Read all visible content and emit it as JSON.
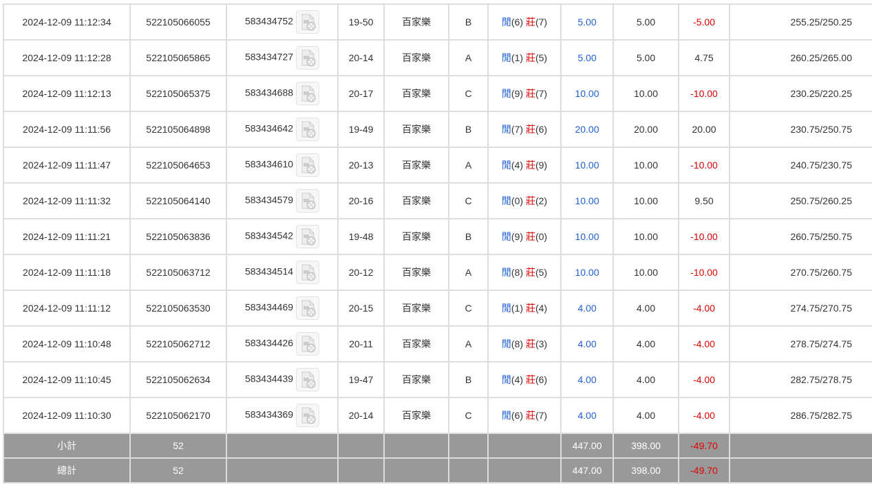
{
  "colors": {
    "player": "#1f5fd1",
    "banker": "#e00000",
    "summary_bg": "#999999"
  },
  "video_icon": "video-replay-icon",
  "rows": [
    {
      "time": "2024-12-09 11:12:34",
      "bet_id": "522105066055",
      "round_id": "583434752",
      "table": "19-50",
      "game": "百家樂",
      "seat": "B",
      "player_label": "閒",
      "player": "(6)",
      "banker_label": "莊",
      "banker": "(7)",
      "bet": "5.00",
      "valid": "5.00",
      "win": "-5.00",
      "balance": "255.25/250.25"
    },
    {
      "time": "2024-12-09 11:12:28",
      "bet_id": "522105065865",
      "round_id": "583434727",
      "table": "20-14",
      "game": "百家樂",
      "seat": "A",
      "player_label": "閒",
      "player": "(1)",
      "banker_label": "莊",
      "banker": "(5)",
      "bet": "5.00",
      "valid": "5.00",
      "win": "4.75",
      "balance": "260.25/265.00"
    },
    {
      "time": "2024-12-09 11:12:13",
      "bet_id": "522105065375",
      "round_id": "583434688",
      "table": "20-17",
      "game": "百家樂",
      "seat": "C",
      "player_label": "閒",
      "player": "(9)",
      "banker_label": "莊",
      "banker": "(7)",
      "bet": "10.00",
      "valid": "10.00",
      "win": "-10.00",
      "balance": "230.25/220.25"
    },
    {
      "time": "2024-12-09 11:11:56",
      "bet_id": "522105064898",
      "round_id": "583434642",
      "table": "19-49",
      "game": "百家樂",
      "seat": "B",
      "player_label": "閒",
      "player": "(7)",
      "banker_label": "莊",
      "banker": "(6)",
      "bet": "20.00",
      "valid": "20.00",
      "win": "20.00",
      "balance": "230.75/250.75"
    },
    {
      "time": "2024-12-09 11:11:47",
      "bet_id": "522105064653",
      "round_id": "583434610",
      "table": "20-13",
      "game": "百家樂",
      "seat": "A",
      "player_label": "閒",
      "player": "(4)",
      "banker_label": "莊",
      "banker": "(9)",
      "bet": "10.00",
      "valid": "10.00",
      "win": "-10.00",
      "balance": "240.75/230.75"
    },
    {
      "time": "2024-12-09 11:11:32",
      "bet_id": "522105064140",
      "round_id": "583434579",
      "table": "20-16",
      "game": "百家樂",
      "seat": "C",
      "player_label": "閒",
      "player": "(0)",
      "banker_label": "莊",
      "banker": "(2)",
      "bet": "10.00",
      "valid": "10.00",
      "win": "9.50",
      "balance": "250.75/260.25"
    },
    {
      "time": "2024-12-09 11:11:21",
      "bet_id": "522105063836",
      "round_id": "583434542",
      "table": "19-48",
      "game": "百家樂",
      "seat": "B",
      "player_label": "閒",
      "player": "(9)",
      "banker_label": "莊",
      "banker": "(0)",
      "bet": "10.00",
      "valid": "10.00",
      "win": "-10.00",
      "balance": "260.75/250.75"
    },
    {
      "time": "2024-12-09 11:11:18",
      "bet_id": "522105063712",
      "round_id": "583434514",
      "table": "20-12",
      "game": "百家樂",
      "seat": "A",
      "player_label": "閒",
      "player": "(8)",
      "banker_label": "莊",
      "banker": "(5)",
      "bet": "10.00",
      "valid": "10.00",
      "win": "-10.00",
      "balance": "270.75/260.75"
    },
    {
      "time": "2024-12-09 11:11:12",
      "bet_id": "522105063530",
      "round_id": "583434469",
      "table": "20-15",
      "game": "百家樂",
      "seat": "C",
      "player_label": "閒",
      "player": "(1)",
      "banker_label": "莊",
      "banker": "(4)",
      "bet": "4.00",
      "valid": "4.00",
      "win": "-4.00",
      "balance": "274.75/270.75"
    },
    {
      "time": "2024-12-09 11:10:48",
      "bet_id": "522105062712",
      "round_id": "583434426",
      "table": "20-11",
      "game": "百家樂",
      "seat": "A",
      "player_label": "閒",
      "player": "(8)",
      "banker_label": "莊",
      "banker": "(3)",
      "bet": "4.00",
      "valid": "4.00",
      "win": "-4.00",
      "balance": "278.75/274.75"
    },
    {
      "time": "2024-12-09 11:10:45",
      "bet_id": "522105062634",
      "round_id": "583434439",
      "table": "19-47",
      "game": "百家樂",
      "seat": "B",
      "player_label": "閒",
      "player": "(4)",
      "banker_label": "莊",
      "banker": "(6)",
      "bet": "4.00",
      "valid": "4.00",
      "win": "-4.00",
      "balance": "282.75/278.75"
    },
    {
      "time": "2024-12-09 11:10:30",
      "bet_id": "522105062170",
      "round_id": "583434369",
      "table": "20-14",
      "game": "百家樂",
      "seat": "C",
      "player_label": "閒",
      "player": "(6)",
      "banker_label": "莊",
      "banker": "(7)",
      "bet": "4.00",
      "valid": "4.00",
      "win": "-4.00",
      "balance": "286.75/282.75"
    }
  ],
  "summary": [
    {
      "label": "小計",
      "count": "52",
      "bet": "447.00",
      "valid": "398.00",
      "win": "-49.70"
    },
    {
      "label": "總計",
      "count": "52",
      "bet": "447.00",
      "valid": "398.00",
      "win": "-49.70"
    }
  ]
}
